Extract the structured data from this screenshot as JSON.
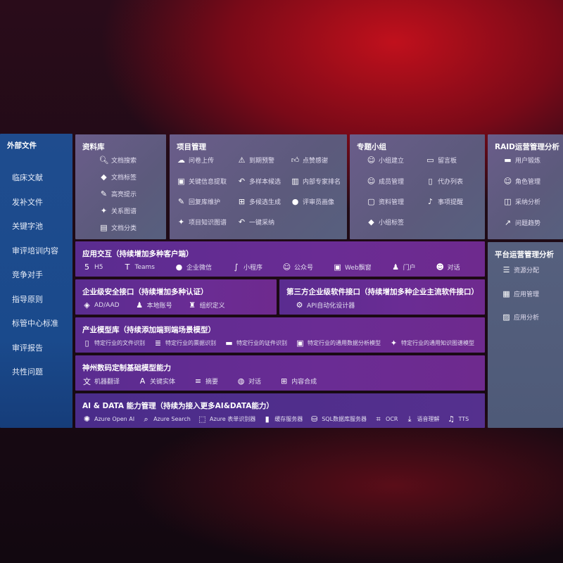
{
  "left": {
    "title": "外部文件",
    "items": [
      "临床文献",
      "发补文件",
      "关键字池",
      "审评培训内容",
      "竞争对手",
      "指导原则",
      "标管中心标准",
      "审评报告",
      "共性问题"
    ]
  },
  "library": {
    "title": "资料库",
    "items": [
      {
        "icon": "document-search-icon",
        "label": "文档搜索"
      },
      {
        "icon": "tag-icon",
        "label": "文档标签"
      },
      {
        "icon": "pen-icon",
        "label": "高亮提示"
      },
      {
        "icon": "graph-icon",
        "label": "关系图谱"
      },
      {
        "icon": "document-category-icon",
        "label": "文档分类"
      }
    ]
  },
  "project": {
    "title": "项目管理",
    "items": [
      {
        "icon": "cloud-upload-icon",
        "label": "问卷上传"
      },
      {
        "icon": "alarm-icon",
        "label": "到期预警"
      },
      {
        "icon": "thumbs-up-icon",
        "label": "点赞感谢"
      },
      {
        "icon": "window-icon",
        "label": "关键信息提取"
      },
      {
        "icon": "reply-icon",
        "label": "多样本候选"
      },
      {
        "icon": "ranking-icon",
        "label": "内部专家排名"
      },
      {
        "icon": "edit-icon",
        "label": "回复库维护"
      },
      {
        "icon": "puzzle-icon",
        "label": "多候选生成"
      },
      {
        "icon": "person-icon",
        "label": "评审员画像"
      },
      {
        "icon": "graph-icon",
        "label": "项目知识图谱"
      },
      {
        "icon": "reply-icon",
        "label": "一键采纳"
      }
    ]
  },
  "group": {
    "title": "专题小组",
    "items": [
      {
        "icon": "users-icon",
        "label": "小组建立"
      },
      {
        "icon": "bbs-icon",
        "label": "留言板"
      },
      {
        "icon": "user-add-icon",
        "label": "成员管理"
      },
      {
        "icon": "clipboard-icon",
        "label": "代办列表"
      },
      {
        "icon": "folder-icon",
        "label": "资料管理"
      },
      {
        "icon": "bell-icon",
        "label": "事项提醒"
      },
      {
        "icon": "tag-icon",
        "label": "小组标签"
      }
    ]
  },
  "raid": {
    "title": "RAID运营管理分析",
    "items": [
      {
        "icon": "id-card-icon",
        "label": "用户锻炼"
      },
      {
        "icon": "users-icon",
        "label": "角色管理"
      },
      {
        "icon": "qa-icon",
        "label": "采纳分析"
      },
      {
        "icon": "trend-icon",
        "label": "问题趋势"
      }
    ]
  },
  "platform": {
    "title": "平台运营管理分析",
    "items": [
      {
        "icon": "checklist-icon",
        "label": "资源分配"
      },
      {
        "icon": "apps-icon",
        "label": "应用管理"
      },
      {
        "icon": "chart-icon",
        "label": "应用分析"
      }
    ]
  },
  "app": {
    "title": "应用交互（持续增加多种客户端）",
    "items": [
      {
        "icon": "html5-icon",
        "label": "H5"
      },
      {
        "icon": "teams-icon",
        "label": "Teams"
      },
      {
        "icon": "wecom-icon",
        "label": "企业微信"
      },
      {
        "icon": "miniprogram-icon",
        "label": "小程序"
      },
      {
        "icon": "users-icon",
        "label": "公众号"
      },
      {
        "icon": "window-icon",
        "label": "Web飘窗"
      },
      {
        "icon": "portal-icon",
        "label": "门户"
      },
      {
        "icon": "chat-users-icon",
        "label": "对话"
      }
    ]
  },
  "security": {
    "title": "企业级安全接口（持续增加多种认证）",
    "items": [
      {
        "icon": "azure-ad-icon",
        "label": "AD/AAD"
      },
      {
        "icon": "account-icon",
        "label": "本地账号"
      },
      {
        "icon": "org-icon",
        "label": "组织定义"
      }
    ]
  },
  "thirdparty": {
    "title": "第三方企业级软件接口（持续增加多种企业主流软件接口）",
    "items": [
      {
        "icon": "gear-icon",
        "label": "API自动化设计器"
      }
    ]
  },
  "industry": {
    "title": "产业模型库（持续添加端到端场景模型）",
    "items": [
      {
        "icon": "file-icon",
        "label": "特定行业的文件识别"
      },
      {
        "icon": "receipt-icon",
        "label": "特定行业的票据识别"
      },
      {
        "icon": "id-card-icon",
        "label": "特定行业的证件识别"
      },
      {
        "icon": "image-icon",
        "label": "特定行业的通用数据分析模型"
      },
      {
        "icon": "graph-icon",
        "label": "特定行业的通用知识图谱模型"
      }
    ]
  },
  "base": {
    "title": "神州数码定制基础模型能力",
    "items": [
      {
        "icon": "translate-icon",
        "label": "机器翻译"
      },
      {
        "icon": "entity-icon",
        "label": "关键实体"
      },
      {
        "icon": "summary-icon",
        "label": "摘要"
      },
      {
        "icon": "chat-icon",
        "label": "对话"
      },
      {
        "icon": "puzzle-icon",
        "label": "内容合成"
      }
    ]
  },
  "ai": {
    "title": "AI & DATA 能力管理（持续为接入更多AI&DATA能力）",
    "items": [
      {
        "icon": "openai-icon",
        "label": "Azure Open AI"
      },
      {
        "icon": "search-icon",
        "label": "Azure Search"
      },
      {
        "icon": "form-icon",
        "label": "Azure 表单识别器"
      },
      {
        "icon": "cache-icon",
        "label": "缓存服务器"
      },
      {
        "icon": "database-icon",
        "label": "SQL数据库服务器"
      },
      {
        "icon": "ocr-icon",
        "label": "OCR"
      },
      {
        "icon": "speech-icon",
        "label": "语音理解"
      },
      {
        "icon": "tts-icon",
        "label": "TTS"
      }
    ]
  }
}
